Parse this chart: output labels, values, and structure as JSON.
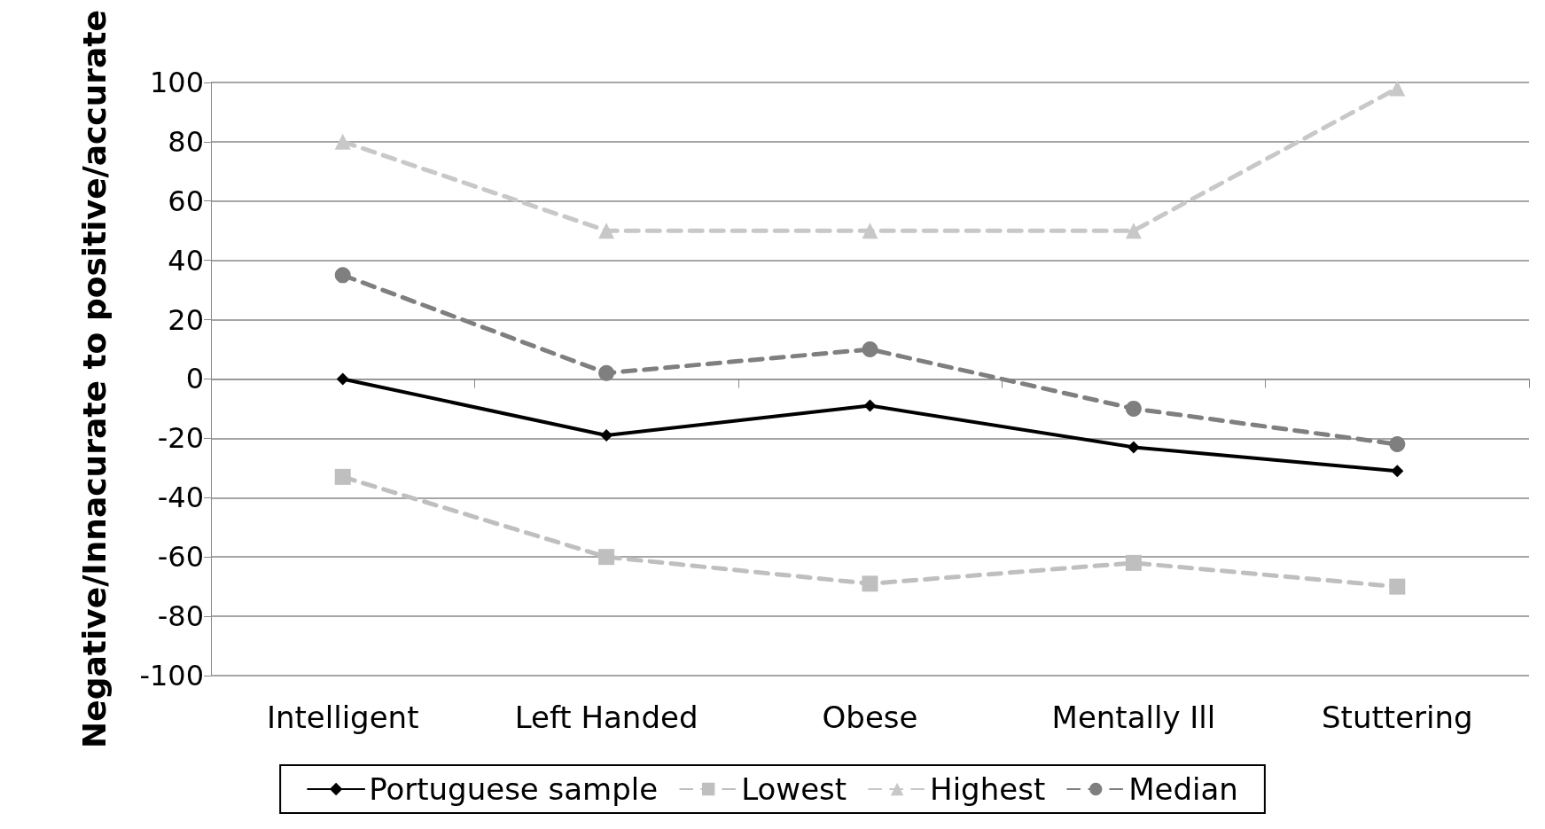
{
  "chart_data": {
    "type": "line",
    "ylabel": "Negative/Innacurate to positive/accurate",
    "categories": [
      "Intelligent",
      "Left Handed",
      "Obese",
      "Mentally Ill",
      "Stuttering"
    ],
    "series": [
      {
        "name": "Portuguese sample",
        "color": "#000000",
        "marker": "diamond",
        "line_style": "solid",
        "values": [
          0,
          -19,
          -9,
          -23,
          -31
        ]
      },
      {
        "name": "Lowest",
        "color": "#bfbfbf",
        "marker": "square",
        "line_style": "dashed",
        "values": [
          -33,
          -60,
          -69,
          -62,
          -70
        ]
      },
      {
        "name": "Highest",
        "color": "#c8c8c8",
        "marker": "triangle",
        "line_style": "dashed",
        "values": [
          80,
          50,
          50,
          50,
          98
        ]
      },
      {
        "name": "Median",
        "color": "#7f7f7f",
        "marker": "circle",
        "line_style": "dashed",
        "values": [
          35,
          2,
          10,
          -10,
          -22
        ]
      }
    ],
    "ylim": [
      -100,
      100
    ],
    "yticks": [
      -100,
      -80,
      -60,
      -40,
      -20,
      0,
      20,
      40,
      60,
      80,
      100
    ],
    "grid": "y",
    "legend": "bottom"
  }
}
